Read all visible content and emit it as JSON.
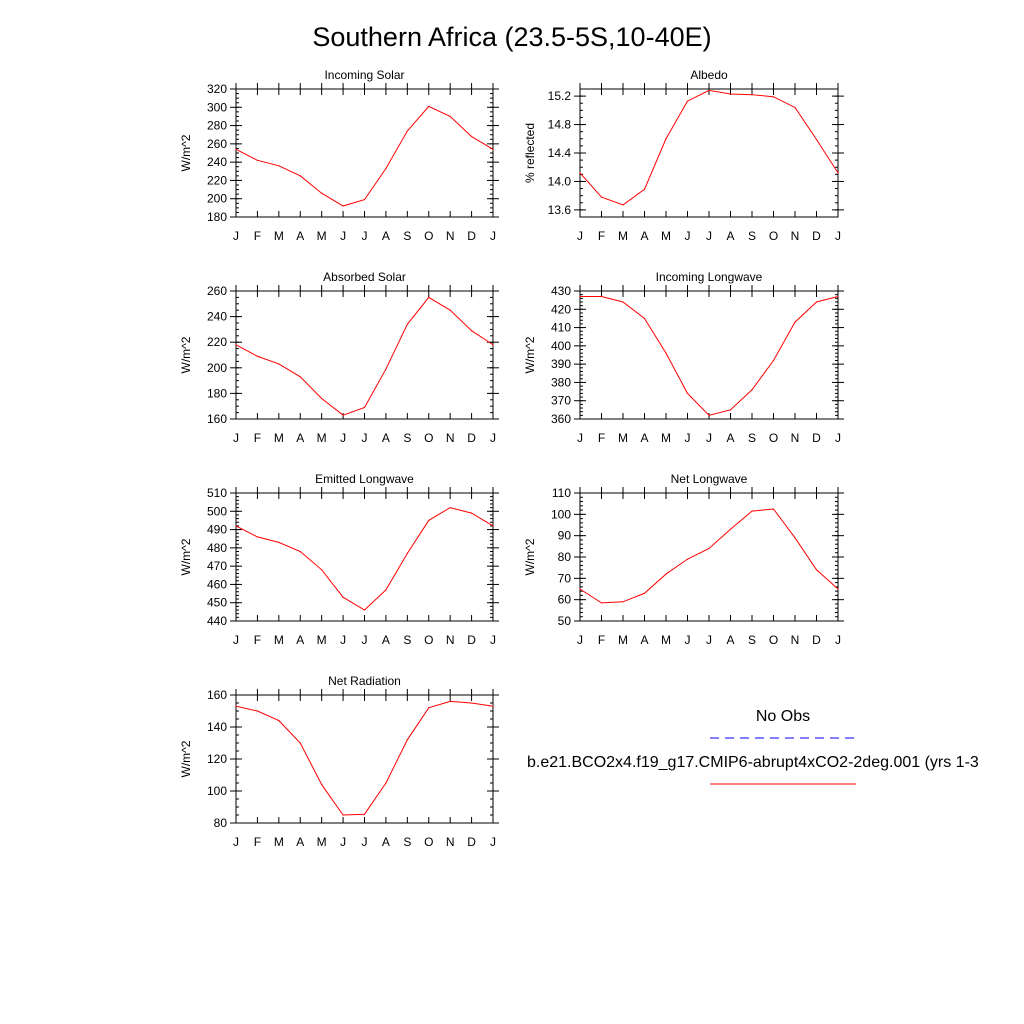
{
  "page_title": "Southern Africa (23.5-5S,10-40E)",
  "colors": {
    "model_line": "#ff0000",
    "obs_line": "#0000ff"
  },
  "legend": {
    "obs_label": "No Obs",
    "model_label": "b.e21.BCO2x4.f19_g17.CMIP6-abrupt4xCO2-2deg.001 (yrs 1-3"
  },
  "chart_data": [
    {
      "type": "line",
      "title": "Incoming Solar",
      "ylabel": "W/m^2",
      "categories": [
        "J",
        "F",
        "M",
        "A",
        "M",
        "J",
        "J",
        "A",
        "S",
        "O",
        "N",
        "D",
        "J"
      ],
      "ylim": [
        180,
        320
      ],
      "yticks": [
        180,
        200,
        220,
        240,
        260,
        280,
        300,
        320
      ],
      "yminor": 5,
      "series": [
        {
          "values": [
            254,
            242,
            236,
            225,
            206,
            192,
            199,
            233,
            274,
            301,
            290,
            268,
            254
          ]
        }
      ]
    },
    {
      "type": "line",
      "title": "Albedo",
      "ylabel": "% reflected",
      "categories": [
        "J",
        "F",
        "M",
        "A",
        "M",
        "J",
        "J",
        "A",
        "S",
        "O",
        "N",
        "D",
        "J"
      ],
      "ylim": [
        13.5,
        15.3
      ],
      "yticks": [
        13.6,
        14.0,
        14.4,
        14.8,
        15.2
      ],
      "yticklabels": [
        "13.6",
        "14.0",
        "14.4",
        "14.8",
        "15.2"
      ],
      "yminor": 0.1,
      "series": [
        {
          "values": [
            14.12,
            13.78,
            13.67,
            13.89,
            14.6,
            15.13,
            15.28,
            15.23,
            15.22,
            15.19,
            15.04,
            14.59,
            14.12
          ]
        }
      ]
    },
    {
      "type": "line",
      "title": "Absorbed Solar",
      "ylabel": "W/m^2",
      "categories": [
        "J",
        "F",
        "M",
        "A",
        "M",
        "J",
        "J",
        "A",
        "S",
        "O",
        "N",
        "D",
        "J"
      ],
      "ylim": [
        160,
        260
      ],
      "yticks": [
        160,
        180,
        200,
        220,
        240,
        260
      ],
      "yminor": 5,
      "series": [
        {
          "values": [
            218,
            209,
            203,
            193,
            176,
            163,
            169,
            199,
            234,
            255,
            245,
            229,
            218
          ]
        }
      ]
    },
    {
      "type": "line",
      "title": "Incoming Longwave",
      "ylabel": "W/m^2",
      "categories": [
        "J",
        "F",
        "M",
        "A",
        "M",
        "J",
        "J",
        "A",
        "S",
        "O",
        "N",
        "D",
        "J"
      ],
      "ylim": [
        360,
        430
      ],
      "yticks": [
        360,
        370,
        380,
        390,
        400,
        410,
        420,
        430
      ],
      "yminor": 2,
      "series": [
        {
          "values": [
            427,
            427,
            424,
            415,
            396,
            374,
            362,
            365,
            376,
            392,
            413,
            424,
            427
          ]
        }
      ]
    },
    {
      "type": "line",
      "title": "Emitted Longwave",
      "ylabel": "W/m^2",
      "categories": [
        "J",
        "F",
        "M",
        "A",
        "M",
        "J",
        "J",
        "A",
        "S",
        "O",
        "N",
        "D",
        "J"
      ],
      "ylim": [
        440,
        510
      ],
      "yticks": [
        440,
        450,
        460,
        470,
        480,
        490,
        500,
        510
      ],
      "yminor": 2,
      "series": [
        {
          "values": [
            492,
            486,
            483,
            478,
            468,
            453,
            446,
            457,
            477,
            495,
            502,
            499,
            492
          ]
        }
      ]
    },
    {
      "type": "line",
      "title": "Net Longwave",
      "ylabel": "W/m^2",
      "categories": [
        "J",
        "F",
        "M",
        "A",
        "M",
        "J",
        "J",
        "A",
        "S",
        "O",
        "N",
        "D",
        "J"
      ],
      "ylim": [
        50,
        110
      ],
      "yticks": [
        50,
        60,
        70,
        80,
        90,
        100,
        110
      ],
      "yminor": 2,
      "series": [
        {
          "values": [
            65,
            58.5,
            59,
            63,
            72,
            79,
            84,
            93,
            101.5,
            102.5,
            89,
            74,
            65
          ]
        }
      ]
    },
    {
      "type": "line",
      "title": "Net Radiation",
      "ylabel": "W/m^2",
      "categories": [
        "J",
        "F",
        "M",
        "A",
        "M",
        "J",
        "J",
        "A",
        "S",
        "O",
        "N",
        "D",
        "J"
      ],
      "ylim": [
        80,
        160
      ],
      "yticks": [
        80,
        100,
        120,
        140,
        160
      ],
      "yminor": 5,
      "series": [
        {
          "values": [
            153,
            150,
            144,
            130,
            104,
            85,
            85.5,
            105,
            132,
            152,
            156,
            155,
            153
          ]
        }
      ]
    }
  ]
}
